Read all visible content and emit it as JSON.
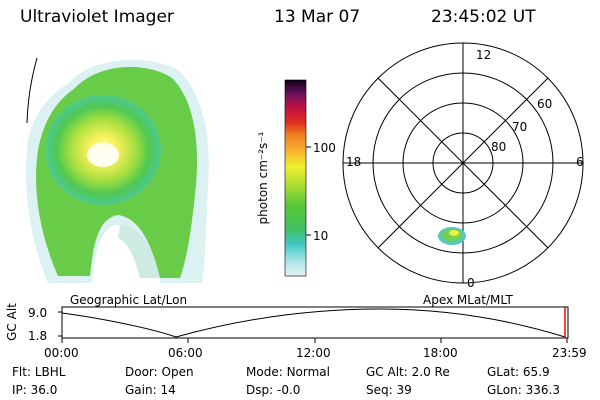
{
  "header": {
    "instrument": "Ultraviolet Imager",
    "date": "13 Mar 07",
    "time": "23:45:02 UT"
  },
  "colorbar": {
    "unit_label": "photon cm⁻²s⁻¹",
    "ticks": [
      {
        "label": "100",
        "value": 100
      },
      {
        "label": "10",
        "value": 10
      }
    ],
    "scale": "log"
  },
  "polar_plot": {
    "mlt_labels": {
      "top": "12",
      "left": "18",
      "right": "6",
      "bottom": "0"
    },
    "lat_labels": [
      "60",
      "70",
      "80"
    ]
  },
  "projection_labels": {
    "left": "Geographic Lat/Lon",
    "right": "Apex MLat/MLT"
  },
  "altitude_plot": {
    "axis_label": "GC Alt",
    "y_ticks": [
      "9.0",
      "1.8"
    ],
    "x_ticks": [
      "00:00",
      "06:00",
      "12:00",
      "18:00",
      "23:59"
    ],
    "current_time_marker_color": "#ff0000"
  },
  "status": {
    "row1": [
      {
        "key": "Flt:",
        "value": "LBHL"
      },
      {
        "key": "Door:",
        "value": "Open"
      },
      {
        "key": "Mode:",
        "value": "Normal"
      },
      {
        "key": "GC Alt:",
        "value": "2.0 Re"
      },
      {
        "key": "GLat:",
        "value": "65.9"
      }
    ],
    "row2": [
      {
        "key": "IP:",
        "value": "36.0"
      },
      {
        "key": "Gain:",
        "value": "14"
      },
      {
        "key": "Dsp:",
        "value": "-0.0"
      },
      {
        "key": "Seq:",
        "value": "39"
      },
      {
        "key": "GLon:",
        "value": "336.3"
      }
    ]
  }
}
